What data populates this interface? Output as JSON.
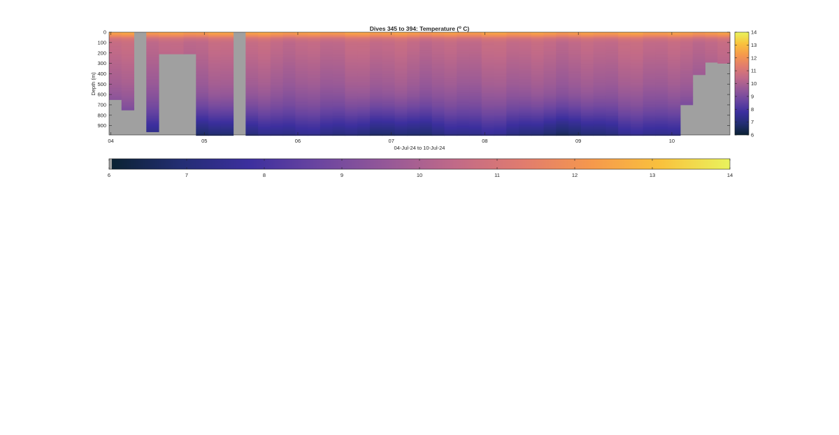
{
  "chart_data": {
    "type": "heatmap",
    "title": "Dives 345 to 394: Temperature (",
    "title_degree": "o",
    "title_unit": " C)",
    "xlabel": "04-Jul-24 to 10-Jul-24",
    "ylabel": "Depth (m)",
    "x_ticks": [
      "04",
      "05",
      "06",
      "07",
      "08",
      "09",
      "10"
    ],
    "y_ticks": [
      "0",
      "100",
      "200",
      "300",
      "400",
      "500",
      "600",
      "700",
      "800",
      "900"
    ],
    "ylim": [
      0,
      990
    ],
    "ydir": "reversed",
    "colorbar_ticks": [
      "6",
      "7",
      "8",
      "9",
      "10",
      "11",
      "12",
      "13",
      "14"
    ],
    "color_range": [
      6,
      14
    ],
    "colormap": [
      "#0b2233",
      "#232e73",
      "#3c2f9e",
      "#6a45a0",
      "#955898",
      "#c16a88",
      "#e17c6e",
      "#f6994c",
      "#f9c23d",
      "#e9f35d"
    ],
    "nodata_color": "#a0a0a0",
    "dives": {
      "count": 50,
      "first": 345,
      "last": 394,
      "missing_below_m": [
        650,
        750,
        0,
        960,
        210,
        210,
        210,
        995,
        995,
        995,
        0,
        995,
        995,
        995,
        995,
        995,
        995,
        995,
        995,
        995,
        995,
        995,
        995,
        995,
        995,
        995,
        995,
        995,
        995,
        995,
        995,
        995,
        995,
        995,
        995,
        995,
        995,
        995,
        995,
        995,
        995,
        995,
        995,
        995,
        995,
        995,
        700,
        410,
        290,
        300
      ]
    },
    "temperature_profile": {
      "depth_m": [
        0,
        30,
        60,
        100,
        200,
        300,
        400,
        500,
        600,
        700,
        800,
        900,
        990
      ],
      "temp_c": [
        12.5,
        11.9,
        10.9,
        10.5,
        10.35,
        10.15,
        9.95,
        9.75,
        9.45,
        9.0,
        8.4,
        7.7,
        7.1
      ]
    }
  }
}
